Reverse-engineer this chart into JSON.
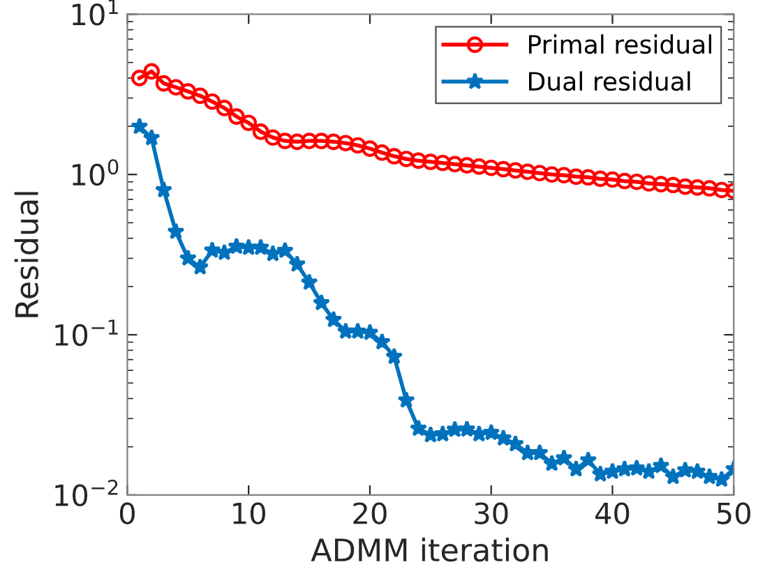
{
  "chart_data": {
    "type": "line",
    "xlabel": "ADMM iteration",
    "ylabel": "Residual",
    "log": "y",
    "x": [
      1,
      2,
      3,
      4,
      5,
      6,
      7,
      8,
      9,
      10,
      11,
      12,
      13,
      14,
      15,
      16,
      17,
      18,
      19,
      20,
      21,
      22,
      23,
      24,
      25,
      26,
      27,
      28,
      29,
      30,
      31,
      32,
      33,
      34,
      35,
      36,
      37,
      38,
      39,
      40,
      41,
      42,
      43,
      44,
      45,
      46,
      47,
      48,
      49,
      50
    ],
    "xlim": [
      0,
      50
    ],
    "xticks": [
      0,
      10,
      20,
      30,
      40,
      50
    ],
    "ylim": [
      0.01,
      10
    ],
    "yticks": [
      {
        "value": 0.01,
        "label": "10$^{−2}$"
      },
      {
        "value": 0.1,
        "label": "10$^{−1}$"
      },
      {
        "value": 1,
        "label": "10$^{0}$"
      },
      {
        "value": 10,
        "label": "10$^{1}$"
      }
    ],
    "grid": false,
    "legend": "top right",
    "line_style": "solid",
    "series": [
      {
        "name": "Primal residual",
        "color": "#ff0000",
        "marker": "circle",
        "values": [
          4.0,
          4.4,
          3.7,
          3.5,
          3.3,
          3.1,
          2.85,
          2.6,
          2.3,
          2.1,
          1.85,
          1.7,
          1.62,
          1.6,
          1.62,
          1.62,
          1.6,
          1.57,
          1.52,
          1.45,
          1.37,
          1.3,
          1.25,
          1.22,
          1.2,
          1.18,
          1.16,
          1.14,
          1.12,
          1.1,
          1.08,
          1.06,
          1.04,
          1.02,
          1.0,
          0.99,
          0.97,
          0.96,
          0.94,
          0.93,
          0.91,
          0.9,
          0.88,
          0.87,
          0.86,
          0.84,
          0.83,
          0.82,
          0.8,
          0.79
        ]
      },
      {
        "name": "Dual residual",
        "color": "#0072bd",
        "marker": "star",
        "values": [
          1.99,
          1.69,
          0.8,
          0.44,
          0.3,
          0.264,
          0.336,
          0.325,
          0.355,
          0.35,
          0.35,
          0.32,
          0.335,
          0.275,
          0.212,
          0.158,
          0.124,
          0.105,
          0.105,
          0.103,
          0.09,
          0.073,
          0.039,
          0.026,
          0.0237,
          0.024,
          0.0256,
          0.0257,
          0.024,
          0.0245,
          0.0226,
          0.0208,
          0.0183,
          0.0183,
          0.0157,
          0.017,
          0.0145,
          0.0165,
          0.0135,
          0.014,
          0.0145,
          0.0147,
          0.014,
          0.0152,
          0.013,
          0.0143,
          0.014,
          0.013,
          0.0125,
          0.0145
        ]
      }
    ]
  }
}
